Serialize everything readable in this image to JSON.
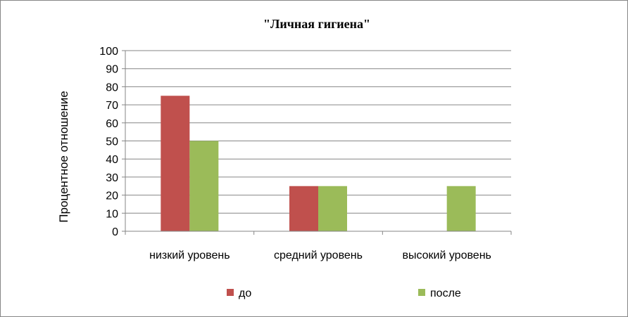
{
  "chart_data": {
    "type": "bar",
    "title": "\"Личная гигиена\"",
    "ylabel": "Процентное отношение",
    "xlabel": "",
    "categories": [
      "низкий уровень",
      "средний уровень",
      "высокий уровень"
    ],
    "series": [
      {
        "name": "до",
        "values": [
          75,
          25,
          0
        ],
        "color": "#c0504d"
      },
      {
        "name": "после",
        "values": [
          50,
          25,
          25
        ],
        "color": "#9bbb59"
      }
    ],
    "ylim": [
      0,
      100
    ],
    "yticks": [
      0,
      10,
      20,
      30,
      40,
      50,
      60,
      70,
      80,
      90,
      100
    ],
    "grid": true,
    "legend_position": "bottom"
  }
}
